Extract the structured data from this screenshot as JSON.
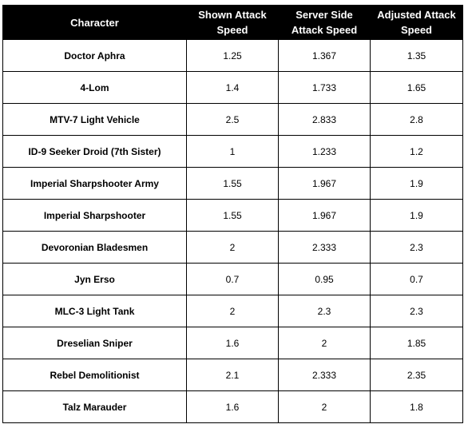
{
  "table": {
    "headers": [
      "Character",
      "Shown Attack Speed",
      "Server Side Attack Speed",
      "Adjusted Attack Speed"
    ],
    "rows": [
      [
        "Doctor Aphra",
        "1.25",
        "1.367",
        "1.35"
      ],
      [
        "4-Lom",
        "1.4",
        "1.733",
        "1.65"
      ],
      [
        "MTV-7 Light Vehicle",
        "2.5",
        "2.833",
        "2.8"
      ],
      [
        "ID-9 Seeker Droid (7th Sister)",
        "1",
        "1.233",
        "1.2"
      ],
      [
        "Imperial Sharpshooter Army",
        "1.55",
        "1.967",
        "1.9"
      ],
      [
        "Imperial Sharpshooter",
        "1.55",
        "1.967",
        "1.9"
      ],
      [
        "Devoronian Bladesmen",
        "2",
        "2.333",
        "2.3"
      ],
      [
        "Jyn Erso",
        "0.7",
        "0.95",
        "0.7"
      ],
      [
        "MLC-3 Light Tank",
        "2",
        "2.3",
        "2.3"
      ],
      [
        "Dreselian Sniper",
        "1.6",
        "2",
        "1.85"
      ],
      [
        "Rebel Demolitionist",
        "2.1",
        "2.333",
        "2.35"
      ],
      [
        "Talz Marauder",
        "1.6",
        "2",
        "1.8"
      ]
    ]
  }
}
